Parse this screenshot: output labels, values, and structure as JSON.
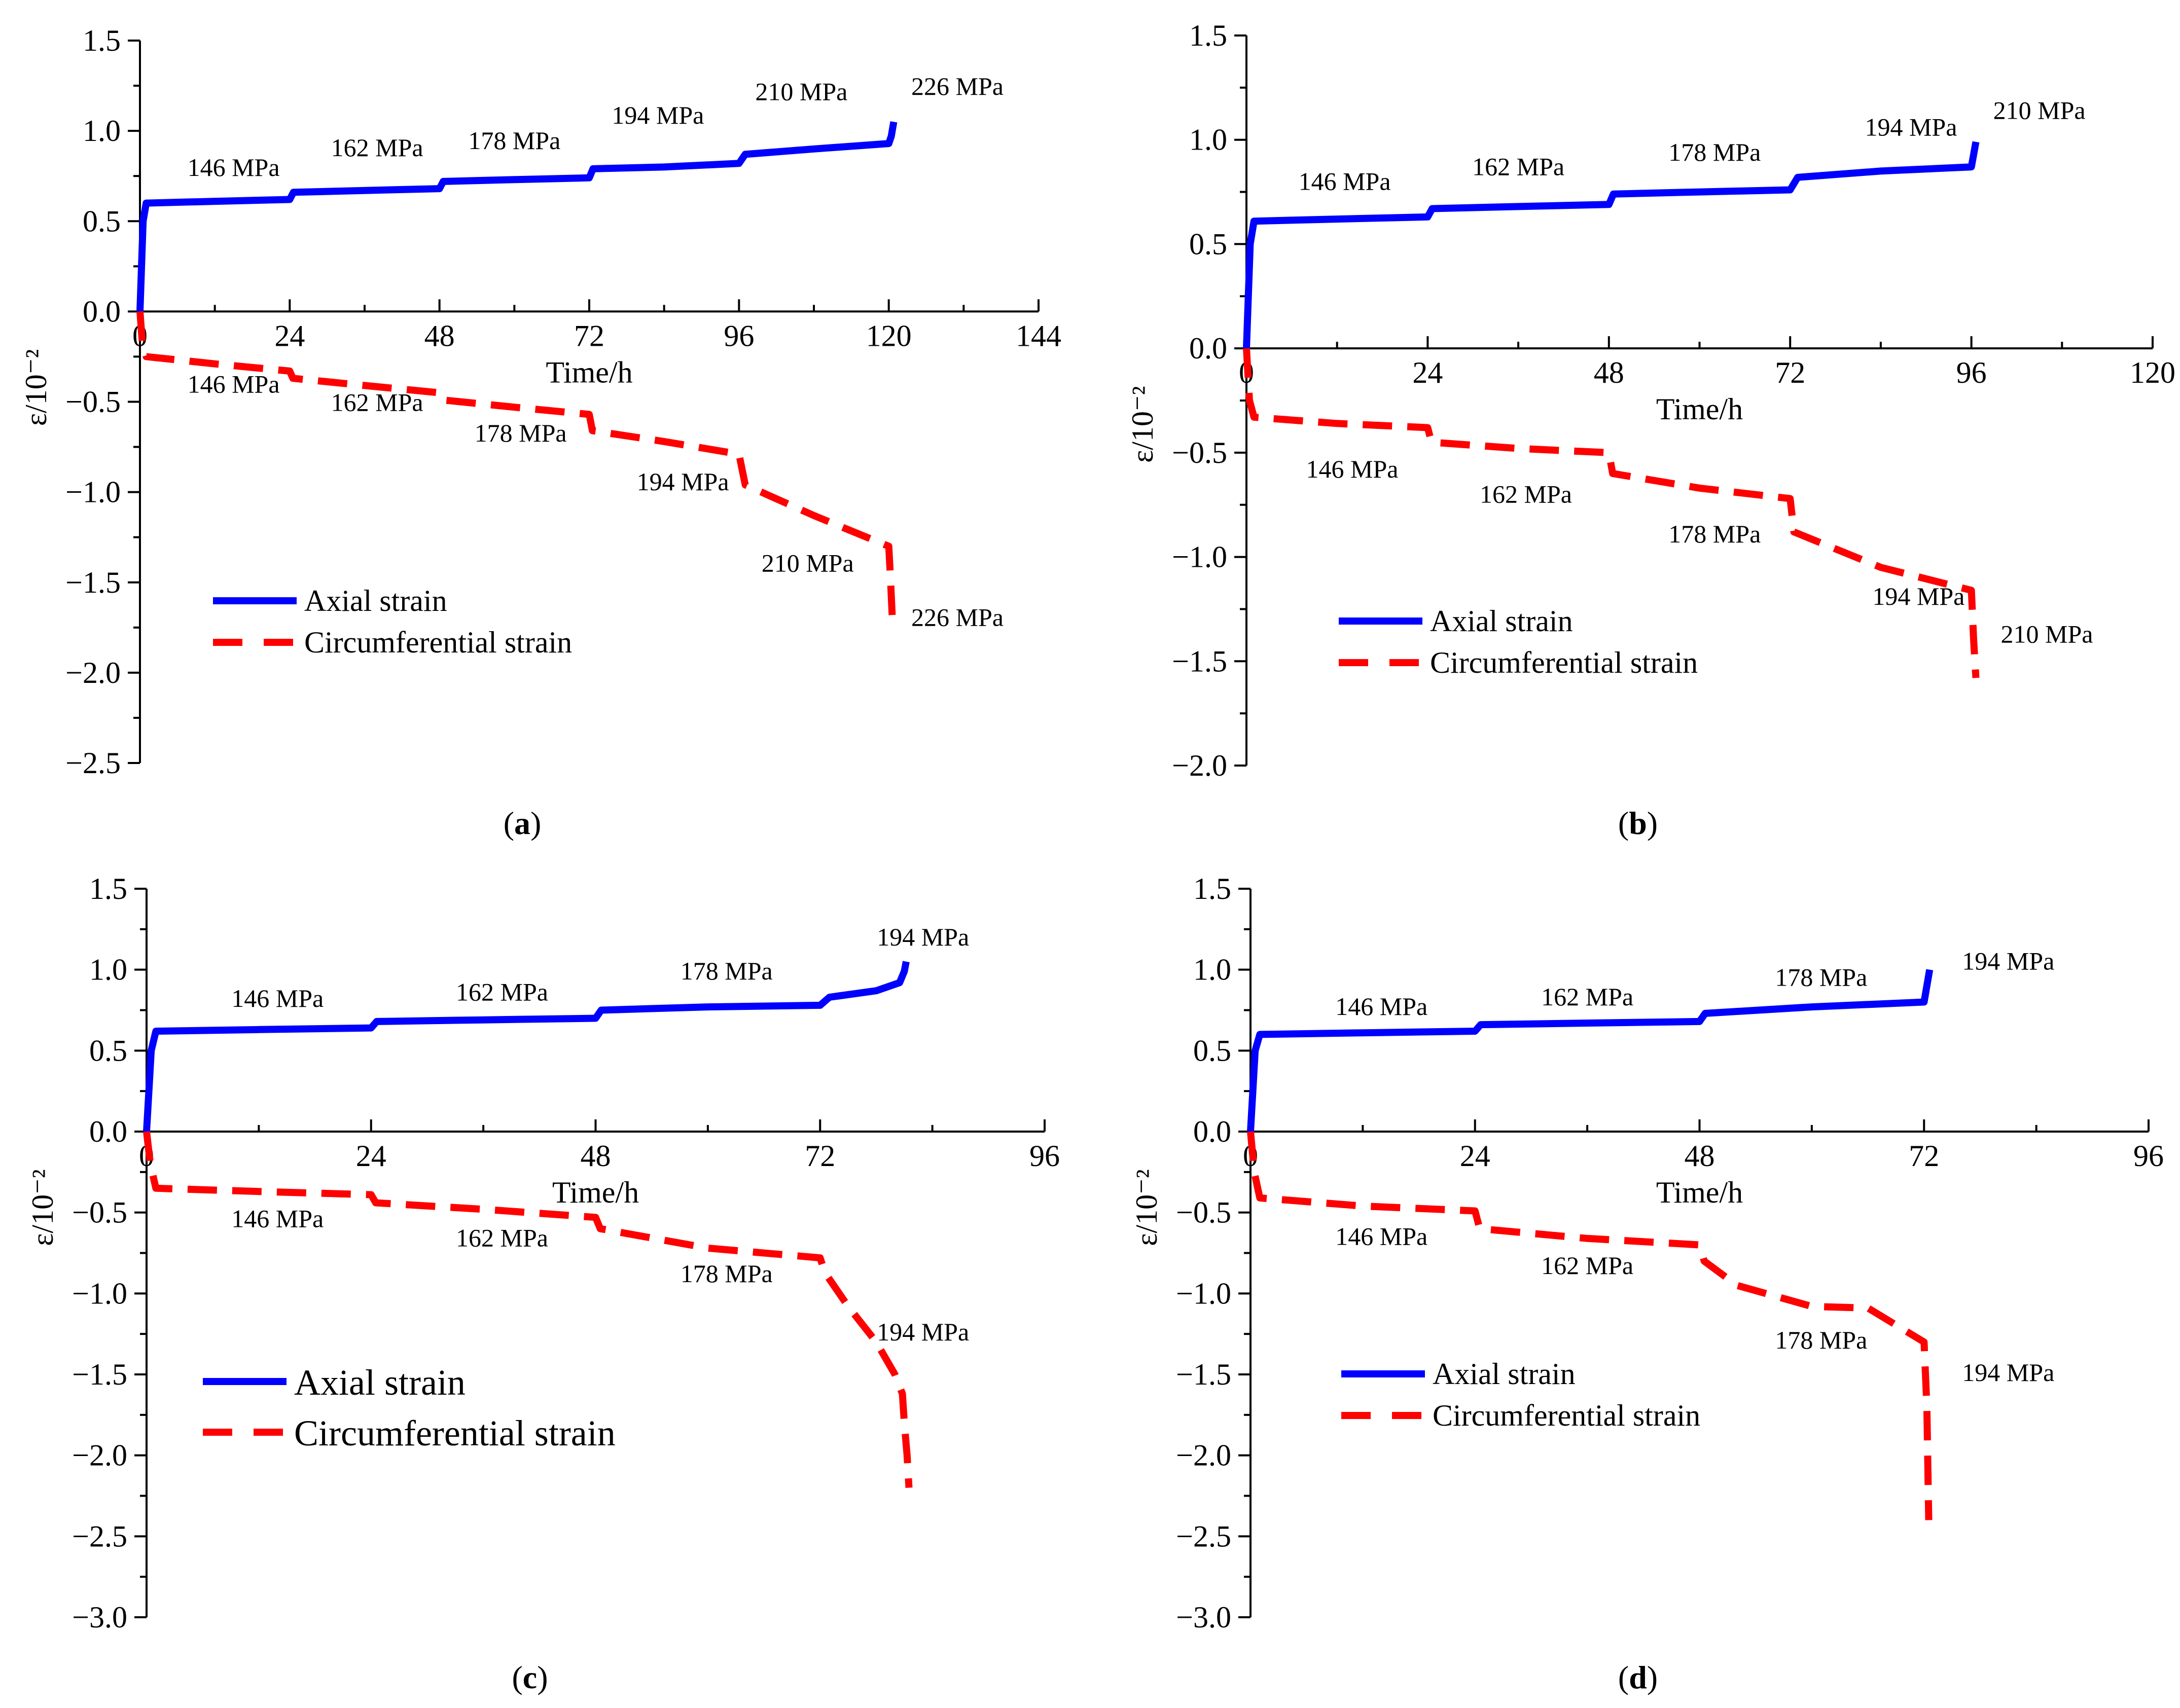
{
  "figure": {
    "axial_color": "#0000ff",
    "circ_color": "#ff0000"
  },
  "chart_data": [
    {
      "id": "a",
      "type": "line",
      "panel_label": "a",
      "xlabel": "Time/h",
      "ylabel": "ε/10⁻²",
      "xlim": [
        0,
        144
      ],
      "ylim": [
        -2.5,
        1.5
      ],
      "xticks": [
        "0",
        "24",
        "48",
        "72",
        "96",
        "120",
        "144"
      ],
      "yticks": [
        "1.5",
        "1.0",
        "0.5",
        "0.0",
        "−0.5",
        "−1.0",
        "−1.5",
        "−2.0",
        "−2.5"
      ],
      "legend": [
        "Axial strain",
        "Circumferential strain"
      ],
      "legend_large": false,
      "series": [
        {
          "name": "Axial strain",
          "style": "solid",
          "x": [
            0,
            0.5,
            1,
            12,
            24,
            24.6,
            36,
            48,
            48.6,
            60,
            72,
            72.6,
            84,
            96,
            97,
            108,
            120,
            120.4,
            120.8
          ],
          "y": [
            0,
            0.5,
            0.6,
            0.61,
            0.62,
            0.66,
            0.67,
            0.68,
            0.72,
            0.73,
            0.74,
            0.79,
            0.8,
            0.82,
            0.87,
            0.9,
            0.93,
            0.97,
            1.05
          ]
        },
        {
          "name": "Circumferential strain",
          "style": "dashed",
          "x": [
            0,
            0.4,
            1,
            12,
            24,
            24.5,
            36,
            48,
            48.5,
            60,
            72,
            72.5,
            84,
            96,
            97,
            108,
            120,
            120.3,
            120.6
          ],
          "y": [
            0,
            -0.18,
            -0.25,
            -0.29,
            -0.33,
            -0.37,
            -0.41,
            -0.45,
            -0.49,
            -0.53,
            -0.57,
            -0.66,
            -0.72,
            -0.79,
            -0.96,
            -1.13,
            -1.3,
            -1.5,
            -1.72
          ]
        }
      ],
      "annotations": {
        "axial": [
          {
            "text": "146 MPa",
            "x": 15,
            "y": 0.75
          },
          {
            "text": "162 MPa",
            "x": 38,
            "y": 0.86
          },
          {
            "text": "178 MPa",
            "x": 60,
            "y": 0.9
          },
          {
            "text": "194 MPa",
            "x": 83,
            "y": 1.04
          },
          {
            "text": "210 MPa",
            "x": 106,
            "y": 1.17
          },
          {
            "text": "226 MPa",
            "x": 131,
            "y": 1.2
          }
        ],
        "circumferential": [
          {
            "text": "146 MPa",
            "x": 15,
            "y": -0.45
          },
          {
            "text": "162 MPa",
            "x": 38,
            "y": -0.55
          },
          {
            "text": "178 MPa",
            "x": 61,
            "y": -0.72
          },
          {
            "text": "194 MPa",
            "x": 87,
            "y": -0.99
          },
          {
            "text": "210 MPa",
            "x": 107,
            "y": -1.44
          },
          {
            "text": "226 MPa",
            "x": 131,
            "y": -1.74
          }
        ]
      }
    },
    {
      "id": "b",
      "type": "line",
      "panel_label": "b",
      "xlabel": "Time/h",
      "ylabel": "ε/10⁻²",
      "xlim": [
        0,
        120
      ],
      "ylim": [
        -2.0,
        1.5
      ],
      "xticks": [
        "0",
        "24",
        "48",
        "72",
        "96",
        "120"
      ],
      "yticks": [
        "1.5",
        "1.0",
        "0.5",
        "0.0",
        "−0.5",
        "−1.0",
        "−1.5",
        "−2.0"
      ],
      "legend": [
        "Axial strain",
        "Circumferential strain"
      ],
      "legend_large": false,
      "series": [
        {
          "name": "Axial strain",
          "style": "solid",
          "x": [
            0,
            0.5,
            1,
            12,
            24,
            24.6,
            36,
            48,
            48.6,
            60,
            72,
            73,
            84,
            96,
            96.3,
            96.6
          ],
          "y": [
            0,
            0.5,
            0.61,
            0.62,
            0.63,
            0.67,
            0.68,
            0.69,
            0.74,
            0.75,
            0.76,
            0.82,
            0.85,
            0.87,
            0.93,
            0.99
          ]
        },
        {
          "name": "Circumferential strain",
          "style": "dashed",
          "x": [
            0,
            0.4,
            1,
            12,
            24,
            24.5,
            36,
            48,
            48.5,
            60,
            72,
            72.5,
            84,
            96,
            96.3,
            96.6
          ],
          "y": [
            0,
            -0.25,
            -0.33,
            -0.36,
            -0.38,
            -0.45,
            -0.48,
            -0.5,
            -0.6,
            -0.67,
            -0.72,
            -0.88,
            -1.05,
            -1.16,
            -1.4,
            -1.58
          ]
        }
      ],
      "annotations": {
        "axial": [
          {
            "text": "146 MPa",
            "x": 13,
            "y": 0.76
          },
          {
            "text": "162 MPa",
            "x": 36,
            "y": 0.83
          },
          {
            "text": "178 MPa",
            "x": 62,
            "y": 0.9
          },
          {
            "text": "194 MPa",
            "x": 88,
            "y": 1.02
          },
          {
            "text": "210 MPa",
            "x": 105,
            "y": 1.1
          }
        ],
        "circumferential": [
          {
            "text": "146 MPa",
            "x": 14,
            "y": -0.62
          },
          {
            "text": "162 MPa",
            "x": 37,
            "y": -0.74
          },
          {
            "text": "178 MPa",
            "x": 62,
            "y": -0.93
          },
          {
            "text": "194 MPa",
            "x": 89,
            "y": -1.23
          },
          {
            "text": "210 MPa",
            "x": 106,
            "y": -1.41
          }
        ]
      }
    },
    {
      "id": "c",
      "type": "line",
      "panel_label": "c",
      "xlabel": "Time/h",
      "ylabel": "ε/10⁻²",
      "xlim": [
        0,
        96
      ],
      "ylim": [
        -3.0,
        1.5
      ],
      "xticks": [
        "0",
        "24",
        "48",
        "72",
        "96"
      ],
      "yticks": [
        "1.5",
        "1.0",
        "0.5",
        "0.0",
        "−0.5",
        "−1.0",
        "−1.5",
        "−2.0",
        "−2.5",
        "−3.0"
      ],
      "legend": [
        "Axial strain",
        "Circumferential strain"
      ],
      "legend_large": true,
      "series": [
        {
          "name": "Axial strain",
          "style": "solid",
          "x": [
            0,
            0.5,
            1,
            12,
            24,
            24.6,
            36,
            48,
            48.6,
            60,
            72,
            73,
            78,
            80.5,
            81,
            81.2
          ],
          "y": [
            0,
            0.5,
            0.62,
            0.63,
            0.64,
            0.68,
            0.69,
            0.7,
            0.75,
            0.77,
            0.78,
            0.83,
            0.87,
            0.92,
            0.99,
            1.05
          ]
        },
        {
          "name": "Circumferential strain",
          "style": "dashed",
          "x": [
            0,
            0.4,
            1,
            12,
            24,
            24.5,
            36,
            48,
            48.5,
            60,
            72,
            72.5,
            75,
            78,
            80,
            80.8,
            81,
            81.3,
            81.5
          ],
          "y": [
            0,
            -0.2,
            -0.35,
            -0.37,
            -0.39,
            -0.44,
            -0.48,
            -0.53,
            -0.6,
            -0.72,
            -0.78,
            -0.87,
            -1.08,
            -1.3,
            -1.5,
            -1.62,
            -1.8,
            -2.0,
            -2.2
          ]
        }
      ],
      "annotations": {
        "axial": [
          {
            "text": "146 MPa",
            "x": 14,
            "y": 0.77
          },
          {
            "text": "162 MPa",
            "x": 38,
            "y": 0.81
          },
          {
            "text": "178 MPa",
            "x": 62,
            "y": 0.94
          },
          {
            "text": "194 MPa",
            "x": 83,
            "y": 1.15
          }
        ],
        "circumferential": [
          {
            "text": "146 MPa",
            "x": 14,
            "y": -0.59
          },
          {
            "text": "162 MPa",
            "x": 38,
            "y": -0.71
          },
          {
            "text": "178 MPa",
            "x": 62,
            "y": -0.93
          },
          {
            "text": "194 MPa",
            "x": 83,
            "y": -1.29
          }
        ]
      }
    },
    {
      "id": "d",
      "type": "line",
      "panel_label": "d",
      "xlabel": "Time/h",
      "ylabel": "ε/10⁻²",
      "xlim": [
        0,
        96
      ],
      "ylim": [
        -3.0,
        1.5
      ],
      "xticks": [
        "0",
        "24",
        "48",
        "72",
        "96"
      ],
      "yticks": [
        "1.5",
        "1.0",
        "0.5",
        "0.0",
        "−0.5",
        "−1.0",
        "−1.5",
        "−2.0",
        "−2.5",
        "−3.0"
      ],
      "legend": [
        "Axial strain",
        "Circumferential strain"
      ],
      "legend_large": false,
      "series": [
        {
          "name": "Axial strain",
          "style": "solid",
          "x": [
            0,
            0.5,
            1,
            12,
            24,
            24.6,
            36,
            48,
            48.6,
            60,
            72,
            72.3,
            72.6
          ],
          "y": [
            0,
            0.5,
            0.6,
            0.61,
            0.62,
            0.66,
            0.67,
            0.68,
            0.73,
            0.77,
            0.8,
            0.9,
            1.0
          ]
        },
        {
          "name": "Circumferential strain",
          "style": "dashed",
          "x": [
            0,
            0.4,
            1,
            12,
            24,
            24.5,
            36,
            48,
            48.5,
            52,
            60,
            66,
            72,
            72.3,
            72.5
          ],
          "y": [
            0,
            -0.25,
            -0.41,
            -0.46,
            -0.49,
            -0.6,
            -0.66,
            -0.7,
            -0.8,
            -0.95,
            -1.08,
            -1.09,
            -1.3,
            -1.7,
            -2.4
          ]
        }
      ],
      "annotations": {
        "axial": [
          {
            "text": "146 MPa",
            "x": 14,
            "y": 0.72
          },
          {
            "text": "162 MPa",
            "x": 36,
            "y": 0.78
          },
          {
            "text": "178 MPa",
            "x": 61,
            "y": 0.9
          },
          {
            "text": "194 MPa",
            "x": 81,
            "y": 1.0
          }
        ],
        "circumferential": [
          {
            "text": "146 MPa",
            "x": 14,
            "y": -0.7
          },
          {
            "text": "162 MPa",
            "x": 36,
            "y": -0.88
          },
          {
            "text": "178 MPa",
            "x": 61,
            "y": -1.34
          },
          {
            "text": "194 MPa",
            "x": 81,
            "y": -1.54
          }
        ]
      }
    }
  ]
}
